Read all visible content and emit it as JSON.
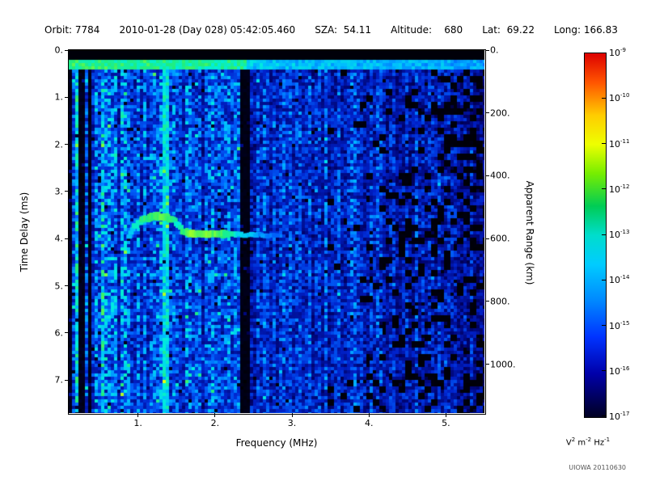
{
  "header": {
    "orbit": "Orbit: 7784",
    "datetime": "2010-01-28 (Day 028) 05:42:05.460",
    "sza": "SZA:  54.11",
    "altitude": "Altitude:    680",
    "lat": "Lat:  69.22",
    "long": "Long: 166.83"
  },
  "watermark": "UIOWA 20110630",
  "chart_data": {
    "type": "heatmap",
    "title": "",
    "xlabel": "Frequency (MHz)",
    "ylabel_left": "Time Delay (ms)",
    "ylabel_right": "Apparent Range (km)",
    "x_range_mhz": [
      0.1,
      5.5
    ],
    "y_range_ms": [
      0.0,
      7.7
    ],
    "right_range_km": [
      0,
      1155
    ],
    "grid": false,
    "x_ticks": [
      {
        "v": 1,
        "label": "1."
      },
      {
        "v": 2,
        "label": "2."
      },
      {
        "v": 3,
        "label": "3."
      },
      {
        "v": 4,
        "label": "4."
      },
      {
        "v": 5,
        "label": "5."
      }
    ],
    "y_ticks_ms": [
      {
        "v": 0,
        "label": "0."
      },
      {
        "v": 1,
        "label": "1."
      },
      {
        "v": 2,
        "label": "2."
      },
      {
        "v": 3,
        "label": "3."
      },
      {
        "v": 4,
        "label": "4."
      },
      {
        "v": 5,
        "label": "5."
      },
      {
        "v": 6,
        "label": "6."
      },
      {
        "v": 7,
        "label": "7."
      }
    ],
    "right_ticks_km": [
      {
        "v": 0,
        "label": "0."
      },
      {
        "v": 200,
        "label": "200."
      },
      {
        "v": 400,
        "label": "400."
      },
      {
        "v": 600,
        "label": "600."
      },
      {
        "v": 800,
        "label": "800."
      },
      {
        "v": 1000,
        "label": "1000."
      }
    ],
    "colorbar": {
      "base": "10",
      "exponents": [
        "-9",
        "-10",
        "-11",
        "-12",
        "-13",
        "-14",
        "-15",
        "-16",
        "-17"
      ],
      "unit_parts": [
        [
          "V",
          "2"
        ],
        [
          "m",
          "-2"
        ],
        [
          "Hz",
          "-1"
        ]
      ],
      "gradient_stops": [
        [
          0.0,
          "#dd0000"
        ],
        [
          0.08,
          "#ff5500"
        ],
        [
          0.17,
          "#ffcc00"
        ],
        [
          0.25,
          "#eeff00"
        ],
        [
          0.33,
          "#77ee00"
        ],
        [
          0.42,
          "#00cc55"
        ],
        [
          0.5,
          "#00ddcc"
        ],
        [
          0.58,
          "#00ccff"
        ],
        [
          0.68,
          "#0088ff"
        ],
        [
          0.78,
          "#0033ff"
        ],
        [
          0.88,
          "#0000aa"
        ],
        [
          1.0,
          "#000022"
        ]
      ]
    },
    "heatmap": {
      "seed": 20110630,
      "colormap_stops": [
        [
          0.0,
          "#000000"
        ],
        [
          0.18,
          "#000066"
        ],
        [
          0.35,
          "#0022cc"
        ],
        [
          0.5,
          "#0066ff"
        ],
        [
          0.62,
          "#00bbff"
        ],
        [
          0.72,
          "#00eedd"
        ],
        [
          0.82,
          "#22ee77"
        ],
        [
          0.92,
          "#88ff33"
        ],
        [
          1.0,
          "#ffff00"
        ]
      ],
      "noise_base": 0.48,
      "features": {
        "top_black_ms": 0.24,
        "surface_line_ms": [
          0.24,
          0.4
        ],
        "left_stripe_max_mhz": 0.38,
        "bright_line_mhz": 1.35,
        "faint_line_mhz": 0.55,
        "dark_band_mhz": [
          2.32,
          2.45
        ],
        "dark_patch_start_mhz": 3.4,
        "echo_trace": [
          [
            0.88,
            3.95,
            0.6
          ],
          [
            0.95,
            3.75,
            0.72
          ],
          [
            1.05,
            3.6,
            0.8
          ],
          [
            1.15,
            3.55,
            0.83
          ],
          [
            1.25,
            3.52,
            0.85
          ],
          [
            1.35,
            3.55,
            0.85
          ],
          [
            1.45,
            3.6,
            0.8
          ],
          [
            1.52,
            3.7,
            0.75
          ],
          [
            1.58,
            3.86,
            0.8
          ],
          [
            1.7,
            3.9,
            0.9
          ],
          [
            1.9,
            3.9,
            0.9
          ],
          [
            2.1,
            3.9,
            0.85
          ],
          [
            2.3,
            3.92,
            0.7
          ],
          [
            2.5,
            3.92,
            0.62
          ],
          [
            2.65,
            3.93,
            0.55
          ],
          [
            2.8,
            3.95,
            0.5
          ]
        ]
      }
    }
  }
}
